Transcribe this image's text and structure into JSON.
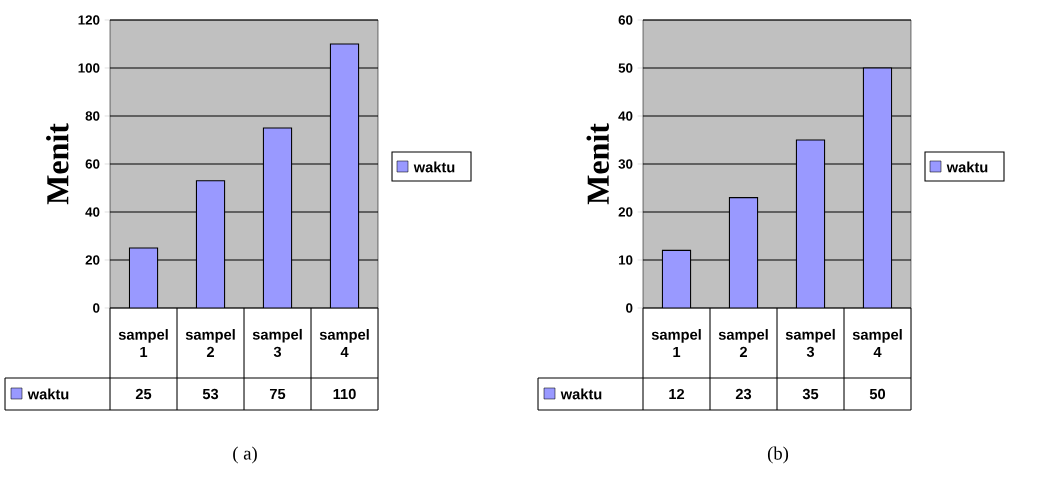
{
  "chart_data": [
    {
      "type": "bar",
      "categories": [
        "sampel 1",
        "sampel 2",
        "sampel 3",
        "sampel 4"
      ],
      "series": [
        {
          "name": "waktu",
          "color": "#9999ff",
          "values": [
            25,
            53,
            75,
            110
          ]
        }
      ],
      "ylabel": "Menit",
      "ylim": [
        0,
        120
      ],
      "yticks": [
        0,
        20,
        40,
        60,
        80,
        100,
        120
      ],
      "grid": "y",
      "legend": "right",
      "data_labels": true,
      "annotations": [
        "( a)"
      ]
    },
    {
      "type": "bar",
      "categories": [
        "sampel 1",
        "sampel 2",
        "sampel 3",
        "sampel 4"
      ],
      "series": [
        {
          "name": "waktu",
          "color": "#9999ff",
          "values": [
            12,
            23,
            35,
            50
          ]
        }
      ],
      "ylabel": "Menit",
      "ylim": [
        0,
        60
      ],
      "yticks": [
        0,
        10,
        20,
        30,
        40,
        50,
        60
      ],
      "grid": "y",
      "legend": "right",
      "data_labels": true,
      "annotations": [
        "(b)"
      ]
    }
  ]
}
